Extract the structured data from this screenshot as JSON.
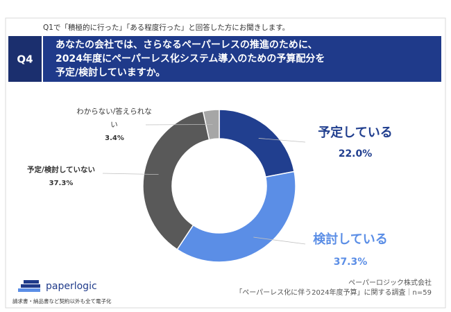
{
  "header": {
    "note": "Q1で「積極的に行った」「ある程度行った」と回答した方にお聞きします。",
    "qnum": "Q4",
    "question": [
      "あなたの会社では、さらなるペーパーレスの推進のために、",
      "2024年度にペーパーレス化システム導入のための予算配分を",
      "予定/検討していますか。"
    ]
  },
  "chart_data": {
    "type": "donut",
    "categories": [
      "予定している",
      "検討している",
      "予定/検討していない",
      "わからない/答えられない"
    ],
    "values": [
      22.0,
      37.3,
      37.3,
      3.4
    ],
    "value_labels": [
      "22.0%",
      "37.3%",
      "37.3%",
      "3.4%"
    ],
    "colors": [
      "#213f8f",
      "#5b8ee6",
      "#595959",
      "#a6a6a6"
    ]
  },
  "footer": {
    "logo": "paperlogic",
    "tagline": "請求書・納品書など契約以外も全て電子化",
    "company": "ペーパーロジック株式会社",
    "source": "「ペーパーレス化に伴う2024年度予算」に関する調査｜n=59"
  }
}
